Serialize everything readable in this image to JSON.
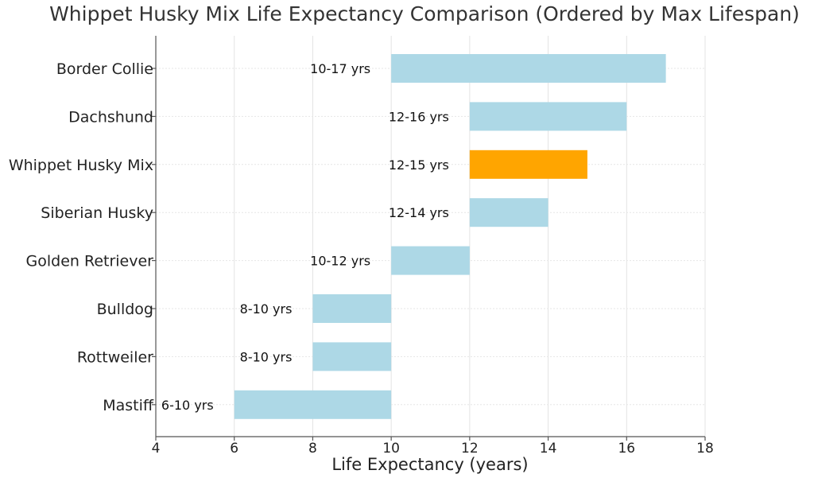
{
  "chart_data": {
    "type": "bar",
    "orientation": "horizontal",
    "title": "Whippet Husky Mix Life Expectancy Comparison (Ordered by Max Lifespan)",
    "xlabel": "Life Expectancy (years)",
    "ylabel": "",
    "xlim": [
      4,
      18
    ],
    "xticks": [
      4,
      6,
      8,
      10,
      12,
      14,
      16,
      18
    ],
    "grid": true,
    "colors": {
      "default": "#add8e6",
      "highlight": "#ffa500"
    },
    "bars": [
      {
        "category": "Border Collie",
        "min": 10,
        "max": 17,
        "label": "10-17 yrs",
        "highlight": false
      },
      {
        "category": "Dachshund",
        "min": 12,
        "max": 16,
        "label": "12-16 yrs",
        "highlight": false
      },
      {
        "category": "Whippet Husky Mix",
        "min": 12,
        "max": 15,
        "label": "12-15 yrs",
        "highlight": true
      },
      {
        "category": "Siberian Husky",
        "min": 12,
        "max": 14,
        "label": "12-14 yrs",
        "highlight": false
      },
      {
        "category": "Golden Retriever",
        "min": 10,
        "max": 12,
        "label": "10-12 yrs",
        "highlight": false
      },
      {
        "category": "Bulldog",
        "min": 8,
        "max": 10,
        "label": "8-10 yrs",
        "highlight": false
      },
      {
        "category": "Rottweiler",
        "min": 8,
        "max": 10,
        "label": "8-10 yrs",
        "highlight": false
      },
      {
        "category": "Mastiff",
        "min": 6,
        "max": 10,
        "label": "6-10 yrs",
        "highlight": false
      }
    ]
  }
}
